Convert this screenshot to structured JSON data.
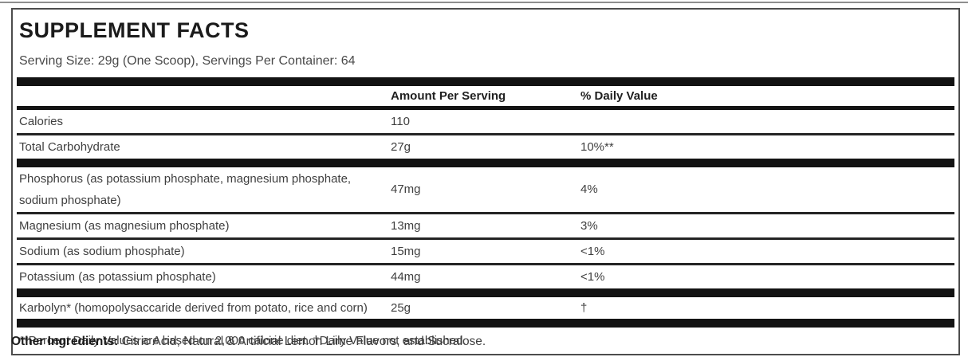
{
  "panel": {
    "title": "SUPPLEMENT FACTS",
    "serving_info": "Serving Size: 29g (One Scoop), Servings Per Container: 64",
    "table": {
      "headers": {
        "amount": "Amount Per Serving",
        "daily_value": "% Daily Value"
      },
      "rows": [
        {
          "label": "Calories",
          "amount": "110",
          "daily_value": ""
        },
        {
          "label": "Total Carbohydrate",
          "amount": "27g",
          "daily_value": "10%**"
        },
        {
          "label": "Phosphorus (as potassium phosphate, magnesium phosphate, sodium phosphate)",
          "amount": "47mg",
          "daily_value": "4%"
        },
        {
          "label": "Magnesium (as magnesium phosphate)",
          "amount": "13mg",
          "daily_value": "3%"
        },
        {
          "label": "Sodium (as sodium phosphate)",
          "amount": "15mg",
          "daily_value": "<1%"
        },
        {
          "label": "Potassium (as potassium phosphate)",
          "amount": "44mg",
          "daily_value": "<1%"
        },
        {
          "label": "Karbolyn* (homopolysaccaride derived from potato, rice and corn)",
          "amount": "25g",
          "daily_value": "†"
        }
      ],
      "footnote": "**Percent Daily Values are based on 2,000 calorie diet. †Daily Value not established."
    }
  },
  "other_ingredients": {
    "label": "Other Ingredients:",
    "text": " Citric Acid, Natural & Artificial Lemon Lime Flavors, and Sucralose."
  },
  "colors": {
    "rule_black": "#131313",
    "border_gray": "#4d4d4d",
    "text_dark": "#1b1b1b",
    "text_body": "#3f3f3f"
  }
}
